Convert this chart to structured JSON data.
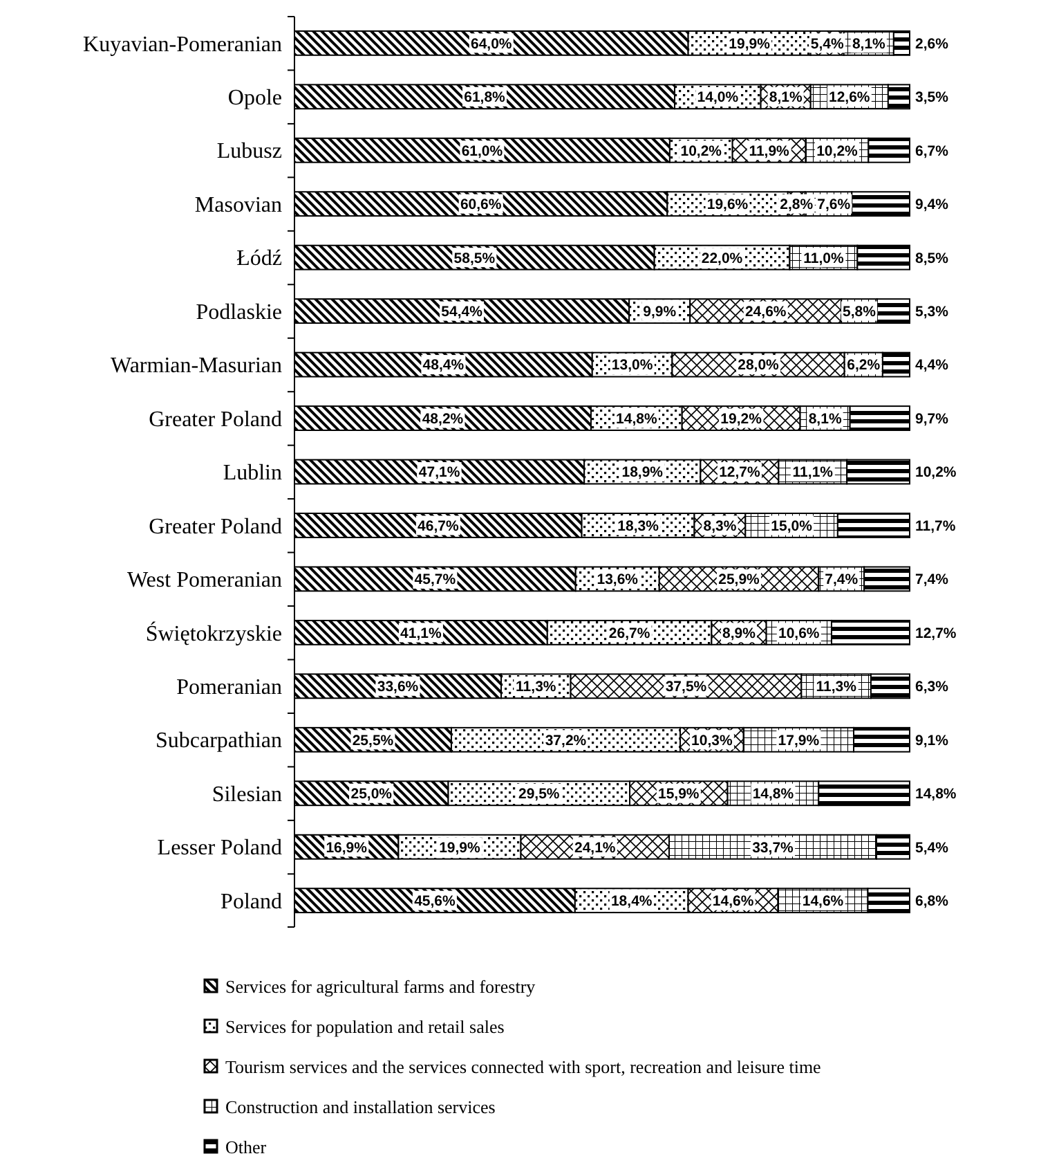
{
  "chart_data": {
    "type": "bar",
    "orientation": "horizontal",
    "stacked": true,
    "xlim": [
      0,
      100
    ],
    "tick_labels": "y",
    "legend": "bottom",
    "categories": [
      "Kuyavian-Pomeranian",
      "Opole",
      "Lubusz",
      "Masovian",
      "Łódź",
      "Podlaskie",
      "Warmian-Masurian",
      "Greater Poland",
      "Lublin",
      "Greater Poland",
      "West Pomeranian",
      "Świętokrzyskie",
      "Pomeranian",
      "Subcarpathian",
      "Silesian",
      "Lesser Poland",
      "Poland"
    ],
    "series": [
      {
        "name": "Services for agricultural farms and forestry",
        "color": "#000000",
        "values": [
          64.0,
          61.8,
          61.0,
          60.6,
          58.5,
          54.4,
          48.4,
          48.2,
          47.1,
          46.7,
          45.7,
          41.1,
          33.6,
          25.5,
          25.0,
          16.9,
          45.6
        ],
        "value_labels": [
          "64,0%",
          "61,8%",
          "61,0%",
          "60,6%",
          "58,5%",
          "54,4%",
          "48,4%",
          "48,2%",
          "47,1%",
          "46,7%",
          "45,7%",
          "41,1%",
          "33,6%",
          "25,5%",
          "25,0%",
          "16,9%",
          "45,6%"
        ]
      },
      {
        "name": "Services for population and retail sales",
        "color": "#000000",
        "values": [
          19.9,
          14.0,
          10.2,
          19.6,
          22.0,
          9.9,
          13.0,
          14.8,
          18.9,
          18.3,
          13.6,
          26.7,
          11.3,
          37.2,
          29.5,
          19.9,
          18.4
        ],
        "value_labels": [
          "19,9%",
          "14,0%",
          "10,2%",
          "19,6%",
          "22,0%",
          "9,9%",
          "13,0%",
          "14,8%",
          "18,9%",
          "18,3%",
          "13,6%",
          "26,7%",
          "11,3%",
          "37,2%",
          "29,5%",
          "19,9%",
          "18,4%"
        ]
      },
      {
        "name": "Tourism services and the services connected with sport, recreation and leisure time",
        "color": "#000000",
        "values": [
          5.4,
          8.1,
          11.9,
          2.8,
          null,
          24.6,
          28.0,
          19.2,
          12.7,
          8.3,
          25.9,
          8.9,
          37.5,
          10.3,
          15.9,
          24.1,
          14.6
        ],
        "value_labels": [
          "5,4%",
          "8,1%",
          "11,9%",
          "2,8%",
          null,
          "24,6%",
          "28,0%",
          "19,2%",
          "12,7%",
          "8,3%",
          "25,9%",
          "8,9%",
          "37,5%",
          "10,3%",
          "15,9%",
          "24,1%",
          "14,6%"
        ]
      },
      {
        "name": "Construction and installation services",
        "color": "#000000",
        "values": [
          8.1,
          12.6,
          10.2,
          7.6,
          11.0,
          5.8,
          6.2,
          8.1,
          11.1,
          15.0,
          7.4,
          10.6,
          11.3,
          17.9,
          14.8,
          33.7,
          14.6
        ],
        "value_labels": [
          "8,1%",
          "12,6%",
          "10,2%",
          "7,6%",
          "11,0%",
          "5,8%",
          "6,2%",
          "8,1%",
          "11,1%",
          "15,0%",
          "7,4%",
          "10,6%",
          "11,3%",
          "17,9%",
          "14,8%",
          "33,7%",
          "14,6%"
        ]
      },
      {
        "name": "Other",
        "color": "#000000",
        "values": [
          2.6,
          3.5,
          6.7,
          9.4,
          8.5,
          5.3,
          4.4,
          9.7,
          10.2,
          11.7,
          7.4,
          12.7,
          6.3,
          9.1,
          14.8,
          5.4,
          6.8
        ],
        "value_labels": [
          "2,6%",
          "3,5%",
          "6,7%",
          "9,4%",
          "8,5%",
          "5,3%",
          "4,4%",
          "9,7%",
          "10,2%",
          "11,7%",
          "7,4%",
          "12,7%",
          "6,3%",
          "9,1%",
          "14,8%",
          "5,4%",
          "6,8%"
        ]
      }
    ]
  }
}
